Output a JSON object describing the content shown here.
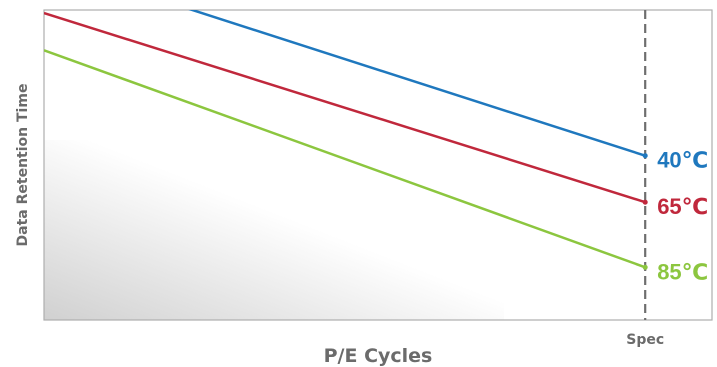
{
  "chart_data": {
    "type": "line",
    "title": "",
    "xlabel": "P/E Cycles",
    "ylabel": "Data Retention Time",
    "xlim": [
      0,
      100
    ],
    "ylim": [
      0,
      100
    ],
    "grid": false,
    "legend": "inline-right",
    "x_marker": {
      "label": "Spec",
      "x": 90
    },
    "series": [
      {
        "name": "40℃",
        "color": "#1f78be",
        "x": [
          15,
          90
        ],
        "y": [
          105,
          53
        ]
      },
      {
        "name": "65℃",
        "color": "#c0283c",
        "x": [
          0,
          90
        ],
        "y": [
          99,
          38
        ]
      },
      {
        "name": "85℃",
        "color": "#8cc63f",
        "x": [
          0,
          90
        ],
        "y": [
          87,
          17
        ]
      }
    ]
  }
}
